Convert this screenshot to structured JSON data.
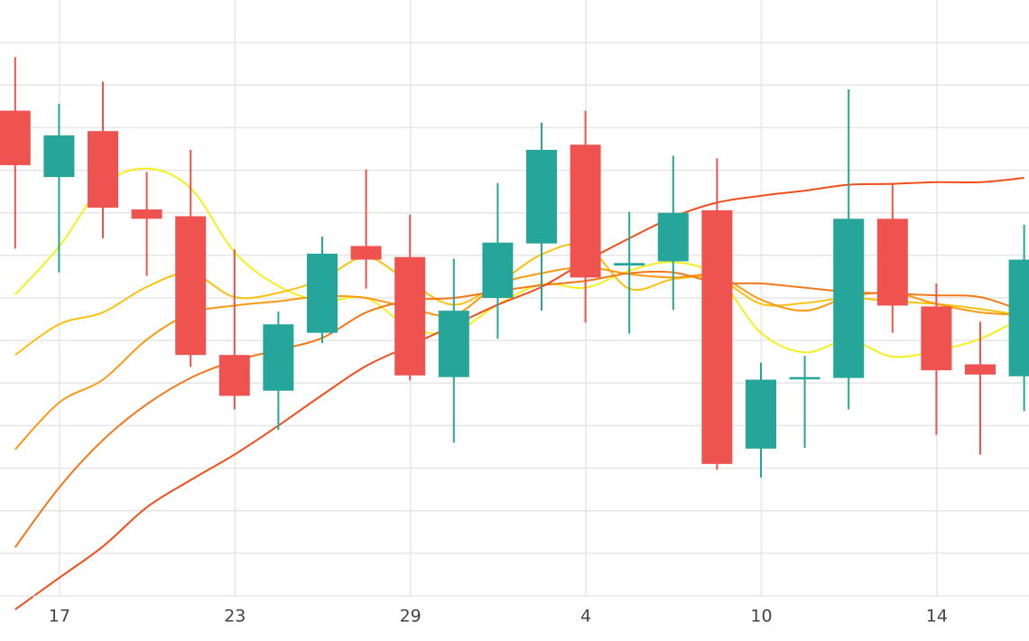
{
  "chart_data": {
    "type": "candlestick",
    "x_tick_labels": [
      "17",
      "23",
      "29",
      "4",
      "10",
      "14"
    ],
    "grid": true,
    "colors": {
      "up": "#26a69a",
      "down": "#ef5350",
      "grid": "#e6e6e6",
      "tick_text": "#444444"
    },
    "candles": [
      {
        "dir": "down",
        "open": 57.0,
        "high": 63.3,
        "low": 40.8,
        "close": 50.6
      },
      {
        "dir": "up",
        "open": 49.2,
        "high": 57.8,
        "low": 38.0,
        "close": 54.1
      },
      {
        "dir": "down",
        "open": 54.6,
        "high": 60.4,
        "low": 42.0,
        "close": 45.6
      },
      {
        "dir": "down",
        "open": 45.4,
        "high": 49.8,
        "low": 37.6,
        "close": 44.3
      },
      {
        "dir": "down",
        "open": 44.6,
        "high": 52.4,
        "low": 26.9,
        "close": 28.3
      },
      {
        "dir": "down",
        "open": 28.3,
        "high": 40.7,
        "low": 21.9,
        "close": 23.5
      },
      {
        "dir": "up",
        "open": 24.1,
        "high": 33.4,
        "low": 19.5,
        "close": 31.9
      },
      {
        "dir": "up",
        "open": 30.9,
        "high": 42.2,
        "low": 29.7,
        "close": 40.2
      },
      {
        "dir": "down",
        "open": 41.1,
        "high": 50.1,
        "low": 36.1,
        "close": 39.5
      },
      {
        "dir": "down",
        "open": 39.8,
        "high": 44.8,
        "low": 25.3,
        "close": 25.9
      },
      {
        "dir": "up",
        "open": 25.7,
        "high": 39.6,
        "low": 18.0,
        "close": 33.5
      },
      {
        "dir": "up",
        "open": 35.0,
        "high": 48.5,
        "low": 30.2,
        "close": 41.5
      },
      {
        "dir": "up",
        "open": 41.4,
        "high": 55.6,
        "low": 33.5,
        "close": 52.4
      },
      {
        "dir": "down",
        "open": 53.0,
        "high": 57.0,
        "low": 32.1,
        "close": 37.4
      },
      {
        "dir": "up",
        "open": 38.8,
        "high": 45.1,
        "low": 30.8,
        "close": 39.1
      },
      {
        "dir": "up",
        "open": 39.3,
        "high": 51.7,
        "low": 33.6,
        "close": 45.0
      },
      {
        "dir": "down",
        "open": 45.3,
        "high": 51.4,
        "low": 14.8,
        "close": 15.5
      },
      {
        "dir": "up",
        "open": 17.3,
        "high": 27.4,
        "low": 13.9,
        "close": 25.4
      },
      {
        "dir": "up",
        "open": 25.7,
        "high": 28.2,
        "low": 17.4,
        "close": 25.7
      },
      {
        "dir": "up",
        "open": 25.6,
        "high": 59.5,
        "low": 21.9,
        "close": 44.3
      },
      {
        "dir": "down",
        "open": 44.3,
        "high": 48.4,
        "low": 30.9,
        "close": 34.1
      },
      {
        "dir": "down",
        "open": 34.0,
        "high": 36.7,
        "low": 18.9,
        "close": 26.5
      },
      {
        "dir": "down",
        "open": 27.2,
        "high": 32.2,
        "low": 16.6,
        "close": 26.0
      },
      {
        "dir": "up",
        "open": 25.8,
        "high": 43.6,
        "low": 21.7,
        "close": 39.5
      }
    ],
    "moving_averages": [
      {
        "color": "#f5f01c",
        "values": [
          35.4,
          41.0,
          48.2,
          50.2,
          47.9,
          40.4,
          36.4,
          34.6,
          35.0,
          31.5,
          31.0,
          34.2,
          36.6,
          36.2,
          38.2,
          39.2,
          37.5,
          30.9,
          28.6,
          30.0,
          28.1,
          28.8,
          30.2,
          32.8
        ]
      },
      {
        "color": "#fac10d",
        "values": [
          28.3,
          31.9,
          33.3,
          36.3,
          37.9,
          35.1,
          35.6,
          37.2,
          39.8,
          36.8,
          34.2,
          36.7,
          40.1,
          41.1,
          36.1,
          37.2,
          37.3,
          34.3,
          34.4,
          35.0,
          34.6,
          34.3,
          33.7,
          32.9
        ]
      },
      {
        "color": "#fa9a12",
        "values": [
          17.2,
          22.7,
          25.4,
          30.1,
          33.2,
          34.1,
          34.6,
          35.2,
          35.0,
          33.8,
          33.0,
          36.5,
          37.9,
          38.6,
          37.8,
          37.4,
          37.6,
          34.8,
          33.5,
          35.1,
          35.6,
          34.3,
          33.3,
          33.0
        ]
      },
      {
        "color": "#f2781a",
        "values": [
          5.7,
          12.7,
          18.3,
          22.5,
          25.6,
          27.6,
          28.9,
          30.3,
          33.3,
          34.7,
          35.0,
          35.8,
          36.5,
          37.0,
          37.9,
          38.0,
          36.8,
          36.7,
          36.2,
          35.7,
          35.5,
          35.3,
          35.1,
          33.4
        ]
      },
      {
        "color": "#f04f1c",
        "values": [
          -1.6,
          2.1,
          5.8,
          10.4,
          13.6,
          16.6,
          20.0,
          23.6,
          27.0,
          29.4,
          31.8,
          34.2,
          36.3,
          39.3,
          42.0,
          44.5,
          46.2,
          47.0,
          47.6,
          48.3,
          48.4,
          48.6,
          48.6,
          49.1
        ]
      }
    ]
  }
}
